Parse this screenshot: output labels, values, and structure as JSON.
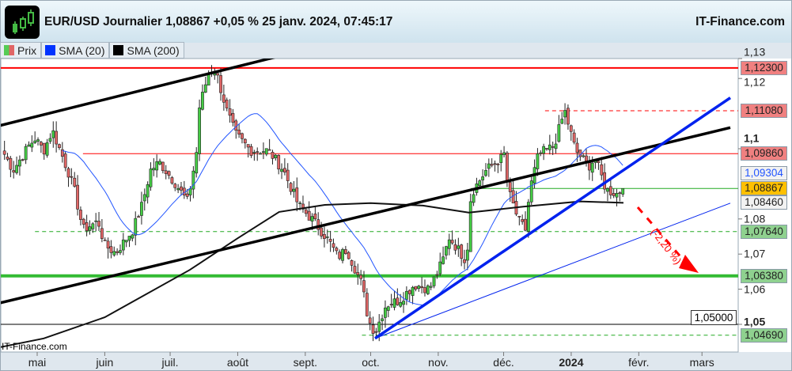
{
  "header": {
    "title": "EUR/USD Journalier 1,08867 +0,05 % 25 janv. 2024, 07:45:17",
    "brand": "IT-Finance.com",
    "logo_icon": "candlestick-chart-icon"
  },
  "legend": [
    {
      "label": "Prix",
      "colors": [
        "#55cc55",
        "#e06666"
      ]
    },
    {
      "label": "SMA (20)",
      "colors": [
        "#0033ff"
      ]
    },
    {
      "label": "SMA (200)",
      "colors": [
        "#000000"
      ]
    }
  ],
  "watermark": "IT-Finance.com",
  "chart_data": {
    "type": "candlestick",
    "symbol": "EUR/USD",
    "last": 1.08867,
    "yaxis": {
      "ticks": [
        "1,13",
        "1,12",
        "1,1",
        "1,08",
        "1,07",
        "1,06",
        "1,05"
      ],
      "tick_values": [
        1.13,
        1.12,
        1.1,
        1.08,
        1.07,
        1.06,
        1.05
      ],
      "range": [
        1.043,
        1.134
      ]
    },
    "xaxis": {
      "ticks": [
        "mai",
        "juin",
        "juil.",
        "août",
        "sept.",
        "oct.",
        "nov.",
        "déc.",
        "2024",
        "févr.",
        "mars"
      ],
      "tick_dates": [
        "2023-05-01",
        "2023-06-01",
        "2023-07-01",
        "2023-08-01",
        "2023-09-01",
        "2023-10-01",
        "2023-11-01",
        "2023-12-01",
        "2024-01-01",
        "2024-02-01",
        "2024-03-01"
      ]
    },
    "price_path": [
      [
        "2023-04-16",
        1.0984
      ],
      [
        "2023-04-20",
        1.0939
      ],
      [
        "2023-04-27",
        1.1007
      ],
      [
        "2023-04-30",
        1.1029
      ],
      [
        "2023-05-04",
        1.0995
      ],
      [
        "2023-05-08",
        1.1052
      ],
      [
        "2023-05-15",
        1.0939
      ],
      [
        "2023-05-18",
        1.0883
      ],
      [
        "2023-05-22",
        1.077
      ],
      [
        "2023-05-29",
        1.0793
      ],
      [
        "2023-06-01",
        1.0725
      ],
      [
        "2023-06-06",
        1.0703
      ],
      [
        "2023-06-14",
        1.077
      ],
      [
        "2023-06-18",
        1.0838
      ],
      [
        "2023-06-22",
        1.0939
      ],
      [
        "2023-06-26",
        1.0962
      ],
      [
        "2023-07-03",
        1.0905
      ],
      [
        "2023-07-09",
        1.0849
      ],
      [
        "2023-07-13",
        1.0984
      ],
      [
        "2023-07-14",
        1.1108
      ],
      [
        "2023-07-19",
        1.1225
      ],
      [
        "2023-07-22",
        1.1221
      ],
      [
        "2023-07-27",
        1.1108
      ],
      [
        "2023-07-31",
        1.1041
      ],
      [
        "2023-08-07",
        1.0995
      ],
      [
        "2023-08-15",
        1.0995
      ],
      [
        "2023-08-22",
        1.0939
      ],
      [
        "2023-08-29",
        1.0838
      ],
      [
        "2023-09-05",
        1.0793
      ],
      [
        "2023-09-12",
        1.0736
      ],
      [
        "2023-09-16",
        1.0691
      ],
      [
        "2023-09-20",
        1.0714
      ],
      [
        "2023-09-27",
        1.0613
      ],
      [
        "2023-09-30",
        1.0511
      ],
      [
        "2023-10-03",
        1.0477
      ],
      [
        "2023-10-08",
        1.0556
      ],
      [
        "2023-10-14",
        1.0568
      ],
      [
        "2023-10-21",
        1.0613
      ],
      [
        "2023-10-28",
        1.0601
      ],
      [
        "2023-11-03",
        1.068
      ],
      [
        "2023-11-06",
        1.0748
      ],
      [
        "2023-11-14",
        1.068
      ],
      [
        "2023-11-16",
        1.0872
      ],
      [
        "2023-11-23",
        1.0939
      ],
      [
        "2023-11-30",
        1.0973
      ],
      [
        "2023-12-01",
        1.0995
      ],
      [
        "2023-12-03",
        1.0883
      ],
      [
        "2023-12-08",
        1.0793
      ],
      [
        "2023-12-11",
        1.077
      ],
      [
        "2023-12-13",
        1.0883
      ],
      [
        "2023-12-17",
        1.0984
      ],
      [
        "2023-12-24",
        1.1007
      ],
      [
        "2023-12-29",
        1.1108
      ],
      [
        "2024-01-03",
        1.0995
      ],
      [
        "2024-01-09",
        1.095
      ],
      [
        "2024-01-12",
        1.0973
      ],
      [
        "2024-01-17",
        1.0883
      ],
      [
        "2024-01-22",
        1.0872
      ],
      [
        "2024-01-25",
        1.08867
      ]
    ],
    "sma20_last": 1.09304,
    "sma200_last": 1.0846,
    "sma200_path": [
      [
        "2023-04-10",
        1.043
      ],
      [
        "2023-05-04",
        1.046
      ],
      [
        "2023-06-01",
        1.052
      ],
      [
        "2023-07-10",
        1.0655
      ],
      [
        "2023-08-01",
        1.0745
      ],
      [
        "2023-08-20",
        1.082
      ],
      [
        "2023-09-10",
        1.084
      ],
      [
        "2023-10-01",
        1.0845
      ],
      [
        "2023-10-25",
        1.0838
      ],
      [
        "2023-11-15",
        1.0818
      ],
      [
        "2023-12-10",
        1.0835
      ],
      [
        "2024-01-05",
        1.085
      ],
      [
        "2024-01-25",
        1.0846
      ]
    ],
    "levels": [
      {
        "value": 1.123,
        "label": "1,12300",
        "color": "#ff0000",
        "style": "solid",
        "from": "2023-04-10",
        "width": 2
      },
      {
        "value": 1.1108,
        "label": "1,11080",
        "color": "#ff0000",
        "style": "dashed",
        "from": "2023-12-20",
        "width": 1
      },
      {
        "value": 1.0986,
        "label": "1,09860",
        "color": "#ff0000",
        "style": "solid",
        "from": "2023-05-22",
        "width": 1
      },
      {
        "value": 1.08867,
        "label": "1,08867",
        "color": "#22aa22",
        "style": "solid",
        "from": "2023-11-16",
        "width": 1
      },
      {
        "value": 1.0764,
        "label": "1,07640",
        "color": "#22aa22",
        "style": "dashed",
        "from": "2023-04-30",
        "width": 1
      },
      {
        "value": 1.0638,
        "label": "1,06380",
        "color": "#33bb33",
        "style": "solid",
        "from": "2023-04-10",
        "width": 4
      },
      {
        "value": 1.05,
        "label": "1,05000",
        "color": "#000000",
        "style": "solid",
        "from": "2023-04-10",
        "width": 1
      },
      {
        "value": 1.0469,
        "label": "1,04690",
        "color": "#22aa22",
        "style": "dashed",
        "from": "2023-09-27",
        "width": 1
      }
    ],
    "trendlines": [
      {
        "from": [
          "2023-04-10",
          1.106
        ],
        "to": [
          "2023-09-03",
          1.1285
        ],
        "color": "#000000",
        "width": 3.5
      },
      {
        "from": [
          "2023-04-10",
          1.0555
        ],
        "to": [
          "2024-03-14",
          1.106
        ],
        "color": "#000000",
        "width": 3.5
      },
      {
        "from": [
          "2023-10-03",
          1.046
        ],
        "to": [
          "2024-03-14",
          1.1145
        ],
        "color": "#0022ee",
        "width": 3.5
      },
      {
        "from": [
          "2023-10-03",
          1.046
        ],
        "to": [
          "2024-03-14",
          1.0845
        ],
        "color": "#0022ee",
        "width": 1
      }
    ],
    "projection": {
      "label": "(-2,20 %)",
      "color": "#ff0000"
    },
    "price_labels": [
      {
        "text": "1,12300",
        "value": 1.123,
        "bg": "#f08080",
        "fg": "#222"
      },
      {
        "text": "1,11080",
        "value": 1.1108,
        "bg": "#f08080",
        "fg": "#222"
      },
      {
        "text": "1,09860",
        "value": 1.0986,
        "bg": "#f08080",
        "fg": "#222"
      },
      {
        "text": "1,09304",
        "value": 1.09304,
        "bg": "#f2f2f2",
        "fg": "#2255ff"
      },
      {
        "text": "1,08867",
        "value": 1.08867,
        "bg": "#ffc000",
        "fg": "#222"
      },
      {
        "text": "1,08460",
        "value": 1.0846,
        "bg": "#f2f2f2",
        "fg": "#222"
      },
      {
        "text": "1,07640",
        "value": 1.0764,
        "bg": "#8fd18f",
        "fg": "#222"
      },
      {
        "text": "1,06380",
        "value": 1.0638,
        "bg": "#8fd18f",
        "fg": "#222"
      },
      {
        "text": "1,04690",
        "value": 1.0469,
        "bg": "#8fd18f",
        "fg": "#222"
      }
    ],
    "box_label": "1,05000"
  }
}
